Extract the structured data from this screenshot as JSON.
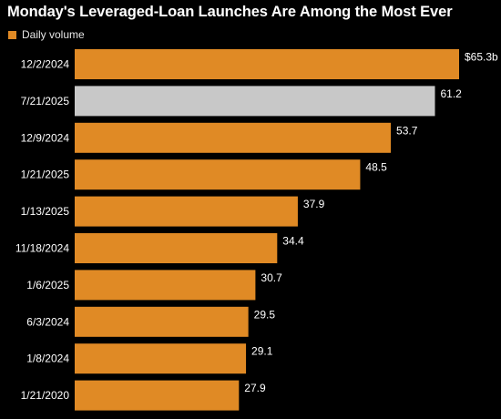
{
  "chart_data": {
    "type": "bar",
    "orientation": "horizontal",
    "title": "Monday's Leveraged-Loan Launches Are Among the Most Ever",
    "legend": [
      {
        "name": "Daily volume",
        "color": "#e08a25"
      }
    ],
    "legend_position": "top-left",
    "categories": [
      "12/2/2024",
      "7/21/2025",
      "12/9/2024",
      "1/21/2025",
      "1/13/2025",
      "11/18/2024",
      "1/6/2025",
      "6/3/2024",
      "1/8/2024",
      "1/21/2020"
    ],
    "values": [
      65.3,
      61.2,
      53.7,
      48.5,
      37.9,
      34.4,
      30.7,
      29.5,
      29.1,
      27.9
    ],
    "value_labels": [
      "$65.3b",
      "61.2",
      "53.7",
      "48.5",
      "37.9",
      "34.4",
      "30.7",
      "29.5",
      "29.1",
      "27.9"
    ],
    "highlight_index": 1,
    "colors": {
      "bar": "#e08a25",
      "highlight": "#c8c8c8",
      "background": "#000000",
      "text": "#ffffff"
    },
    "xlim": [
      0,
      65.3
    ],
    "grid": false
  }
}
